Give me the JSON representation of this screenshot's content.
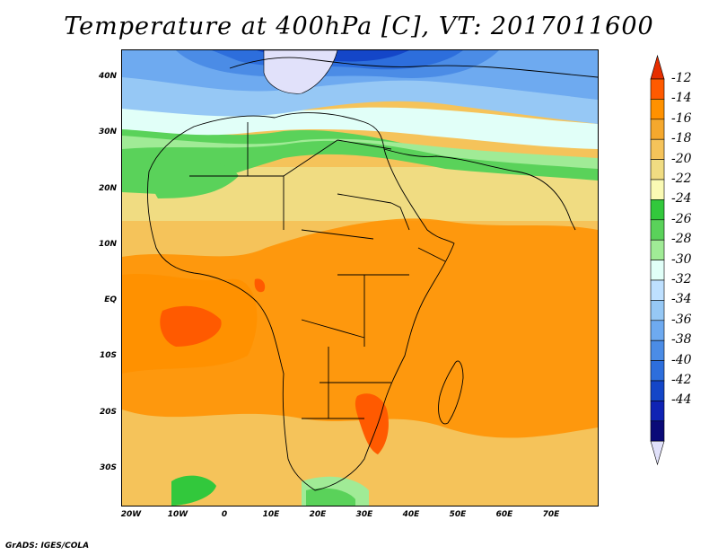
{
  "title": "Temperature at 400hPa [C], VT: 2017011600",
  "footer": "GrADS: IGES/COLA",
  "axes": {
    "lat_labels": [
      "40N",
      "30N",
      "20N",
      "10N",
      "EQ",
      "10S",
      "20S",
      "30S"
    ],
    "lon_labels": [
      "20W",
      "10W",
      "0",
      "10E",
      "20E",
      "30E",
      "40E",
      "50E",
      "60E",
      "70E"
    ]
  },
  "colorbar": {
    "levels": [
      "-12",
      "-14",
      "-16",
      "-18",
      "-20",
      "-22",
      "-24",
      "-26",
      "-28",
      "-30",
      "-32",
      "-34",
      "-36",
      "-38",
      "-40",
      "-42",
      "-44"
    ],
    "colors": [
      "#e62e00",
      "#ff5a00",
      "#ff9100",
      "#f5a82d",
      "#f5c35a",
      "#f0dc82",
      "#fafab4",
      "#32c83c",
      "#5ad25a",
      "#a0eb96",
      "#e1fff8",
      "#bee0ff",
      "#96c8f5",
      "#6eaaf0",
      "#4b8ce6",
      "#2d6edc",
      "#1446c8",
      "#0f23b4",
      "#0a0a78",
      "#e1e1fa"
    ]
  },
  "region": {
    "lon_range": [
      -22,
      80
    ],
    "lat_range": [
      -37,
      45
    ]
  }
}
